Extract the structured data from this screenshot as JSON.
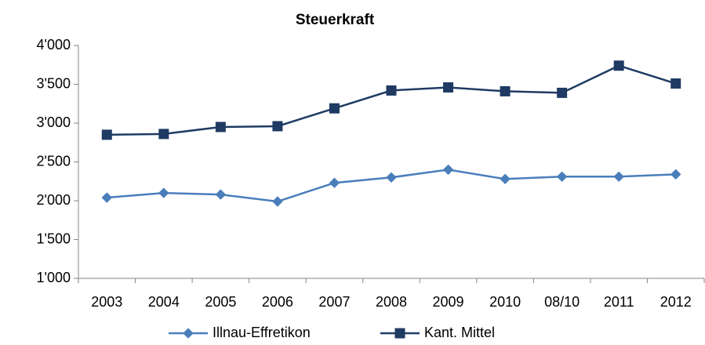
{
  "chart_data": {
    "type": "line",
    "title": "Steuerkraft",
    "categories": [
      "2003",
      "2004",
      "2005",
      "2006",
      "2007",
      "2008",
      "2009",
      "2010",
      "08/10",
      "2011",
      "2012"
    ],
    "series": [
      {
        "name": "Illnau-Effretikon",
        "color": "#4a7ebb",
        "marker": "diamond",
        "values": [
          2040,
          2100,
          2080,
          1990,
          2230,
          2300,
          2400,
          2280,
          2310,
          2310,
          2340
        ]
      },
      {
        "name": "Kant. Mittel",
        "color": "#1f3b63",
        "marker": "square",
        "values": [
          2850,
          2860,
          2950,
          2960,
          3190,
          3420,
          3460,
          3410,
          3390,
          3740,
          3510
        ]
      }
    ],
    "ylim": [
      1000,
      4000
    ],
    "yticks": [
      {
        "value": 1000,
        "label": "1'000"
      },
      {
        "value": 1500,
        "label": "1'500"
      },
      {
        "value": 2000,
        "label": "2'000"
      },
      {
        "value": 2500,
        "label": "2'500"
      },
      {
        "value": 3000,
        "label": "3'000"
      },
      {
        "value": 3500,
        "label": "3'500"
      },
      {
        "value": 4000,
        "label": "4'000"
      }
    ],
    "grid": false,
    "legend": "bottom"
  }
}
